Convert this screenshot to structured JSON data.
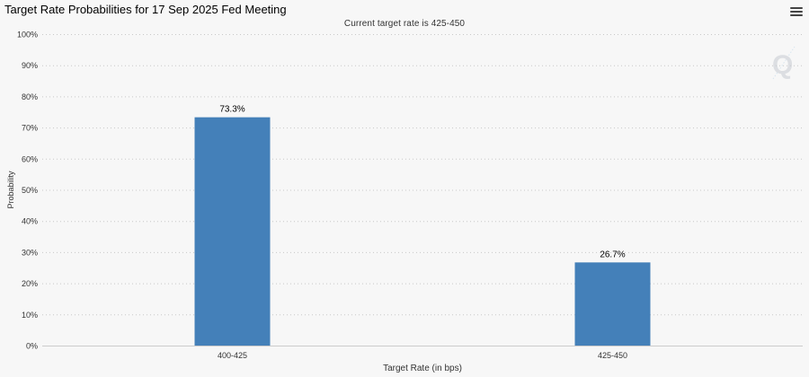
{
  "header": {
    "title": "Target Rate Probabilities for 17 Sep 2025 Fed Meeting",
    "subtitle": "Current target rate is 425-450"
  },
  "icons": {
    "menu": "hamburger-menu-icon",
    "watermark": "q-logo-icon"
  },
  "colors": {
    "bar": "#4480b9",
    "grid": "#c8c8c8",
    "axis": "#cccccc",
    "text": "#333333"
  },
  "chart_data": {
    "type": "bar",
    "categories": [
      "400-425",
      "425-450"
    ],
    "values": [
      73.3,
      26.7
    ],
    "data_labels": [
      "73.3%",
      "26.7%"
    ],
    "xlabel": "Target Rate (in bps)",
    "ylabel": "Probability",
    "ylim": [
      0,
      100
    ],
    "yticks": [
      0,
      10,
      20,
      30,
      40,
      50,
      60,
      70,
      80,
      90,
      100
    ],
    "ytick_labels": [
      "0%",
      "10%",
      "20%",
      "30%",
      "40%",
      "50%",
      "60%",
      "70%",
      "80%",
      "90%",
      "100%"
    ],
    "grid": true,
    "grid_style": "dotted"
  }
}
